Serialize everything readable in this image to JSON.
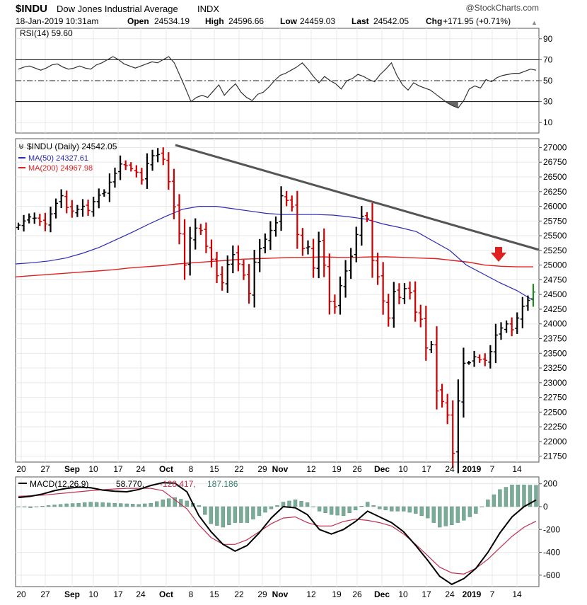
{
  "header": {
    "symbol": "$INDU",
    "name": "Dow Jones Industrial Average",
    "exchange": "INDX",
    "brand": "@StockCharts.com",
    "date": "18-Jan-2019 10:31am",
    "open_label": "Open",
    "open": "24534.19",
    "high_label": "High",
    "high": "24596.66",
    "low_label": "Low",
    "low": "24459.03",
    "last_label": "Last",
    "last": "24542.05",
    "chg_label": "Chg",
    "chg": "+171.95 (+0.71%)"
  },
  "colors": {
    "price_up": "#000000",
    "price_down": "#cc0000",
    "ma50": "#2a2ab8",
    "ma200": "#e02020",
    "macd_line": "#000000",
    "signal_line": "#c03050",
    "histogram": "#7aaa98",
    "trendline": "#555555",
    "arrow": "#e02020"
  },
  "chart_data": [
    {
      "type": "line",
      "panel": "RSI",
      "legend": "RSI(14) 59.60",
      "y_ticks": [
        90,
        70,
        50,
        30,
        10
      ],
      "ylim": [
        0,
        100
      ],
      "reference_lines": [
        70,
        50,
        30
      ],
      "x_ticks": [
        "20",
        "27",
        "Sep",
        "10",
        "17",
        "24",
        "Oct",
        "8",
        "15",
        "22",
        "29",
        "Nov",
        "12",
        "19",
        "26",
        "Dec",
        "10",
        "17",
        "24",
        "2019",
        "7",
        "14"
      ],
      "series": [
        {
          "name": "RSI(14)",
          "values": [
            61,
            63,
            64,
            62,
            60,
            62,
            65,
            66,
            63,
            61,
            62,
            64,
            62,
            61,
            65,
            67,
            70,
            73,
            70,
            66,
            64,
            62,
            64,
            66,
            68,
            67,
            70,
            73,
            67,
            55,
            43,
            30,
            34,
            36,
            34,
            40,
            46,
            36,
            42,
            47,
            39,
            34,
            31,
            37,
            39,
            44,
            50,
            55,
            57,
            60,
            63,
            67,
            61,
            54,
            48,
            54,
            50,
            47,
            42,
            50,
            52,
            56,
            54,
            51,
            49,
            56,
            61,
            67,
            55,
            46,
            41,
            48,
            45,
            43,
            41,
            37,
            33,
            29,
            26,
            24,
            31,
            42,
            45,
            43,
            51,
            49,
            53,
            55,
            56,
            57,
            57,
            59,
            61,
            60
          ]
        }
      ]
    },
    {
      "type": "bar",
      "panel": "Price",
      "legend": "$INDU (Daily) 24542.05",
      "y_ticks": [
        27000,
        26750,
        26500,
        26250,
        26000,
        25750,
        25500,
        25250,
        25000,
        24750,
        24500,
        24250,
        24000,
        23750,
        23500,
        23250,
        23000,
        22750,
        22500,
        22250,
        22000,
        21750
      ],
      "ylim": [
        21650,
        27150
      ],
      "x_ticks": [
        "20",
        "27",
        "Sep",
        "10",
        "17",
        "24",
        "Oct",
        "8",
        "15",
        "22",
        "29",
        "Nov",
        "12",
        "19",
        "26",
        "Dec",
        "10",
        "17",
        "24",
        "2019",
        "7",
        "14"
      ],
      "values": [
        25680,
        25750,
        25820,
        25800,
        25740,
        25700,
        25870,
        26050,
        26180,
        25980,
        25920,
        25950,
        26000,
        25930,
        26080,
        26190,
        26240,
        26410,
        26560,
        26720,
        26690,
        26640,
        26580,
        26450,
        26730,
        26860,
        26880,
        26800,
        26420,
        25990,
        25540,
        25000,
        25460,
        25630,
        25590,
        25320,
        25100,
        24820,
        24700,
        25010,
        25180,
        25020,
        24830,
        24520,
        25050,
        25280,
        25440,
        25590,
        25720,
        26180,
        26100,
        25990,
        25520,
        25280,
        25310,
        24950,
        25400,
        25000,
        24380,
        24290,
        24650,
        24900,
        25150,
        25520,
        25830,
        25790,
        25080,
        24800,
        24390,
        24100,
        24550,
        24450,
        24600,
        24530,
        24200,
        24080,
        23590,
        23650,
        22860,
        22680,
        22450,
        21800,
        22690,
        23330,
        23340,
        23440,
        23390,
        23380,
        23530,
        23810,
        23930,
        24000,
        23900,
        24100,
        24300,
        24400,
        24542
      ],
      "series": [
        {
          "name": "MA(50) 24327.61",
          "values": [
            25020,
            25040,
            25070,
            25120,
            25200,
            25300,
            25430,
            25560,
            25700,
            25830,
            25950,
            26000,
            26000,
            25960,
            25920,
            25880,
            25860,
            25860,
            25860,
            25850,
            25820,
            25780,
            25700,
            25640,
            25570,
            25410,
            25250,
            25000,
            24850,
            24700,
            24570,
            24400
          ]
        },
        {
          "name": "MA(200) 24967.98",
          "values": [
            24800,
            24820,
            24840,
            24860,
            24880,
            24900,
            24920,
            24950,
            24970,
            24990,
            25020,
            25040,
            25060,
            25080,
            25100,
            25110,
            25120,
            25130,
            25130,
            25140,
            25130,
            25130,
            25140,
            25140,
            25130,
            25120,
            25110,
            25080,
            25050,
            25000,
            24980,
            24970,
            24970
          ]
        }
      ],
      "annotations": [
        "Downtrend line",
        "Red arrow above MA(200)"
      ]
    },
    {
      "type": "line",
      "panel": "MACD",
      "legend_prefix": "MACD(12,26,9)",
      "legend_macd": "58.770,",
      "legend_signal": "-128.417,",
      "legend_hist": "187.186",
      "y_ticks": [
        200,
        0,
        -200,
        -400,
        -600
      ],
      "ylim": [
        -700,
        260
      ],
      "x_ticks": [
        "20",
        "27",
        "Sep",
        "10",
        "17",
        "24",
        "Oct",
        "8",
        "15",
        "22",
        "29",
        "Nov",
        "12",
        "19",
        "26",
        "Dec",
        "10",
        "17",
        "24",
        "2019",
        "7",
        "14"
      ],
      "series": [
        {
          "name": "MACD",
          "values": [
            80,
            90,
            110,
            140,
            160,
            170,
            165,
            145,
            135,
            130,
            150,
            185,
            210,
            205,
            130,
            -80,
            -220,
            -330,
            -390,
            -340,
            -230,
            -100,
            0,
            -10,
            -70,
            -200,
            -240,
            -200,
            -130,
            -40,
            -90,
            -140,
            -220,
            -340,
            -470,
            -610,
            -680,
            -630,
            -540,
            -400,
            -230,
            -90,
            0,
            58
          ]
        },
        {
          "name": "Signal",
          "values": [
            90,
            95,
            100,
            110,
            120,
            130,
            140,
            148,
            155,
            160,
            160,
            160,
            140,
            60,
            -20,
            -160,
            -270,
            -330,
            -330,
            -290,
            -220,
            -150,
            -100,
            -90,
            -140,
            -170,
            -170,
            -130,
            -110,
            -120,
            -140,
            -170,
            -240,
            -330,
            -430,
            -530,
            -580,
            -590,
            -540,
            -460,
            -360,
            -260,
            -180,
            -128
          ]
        },
        {
          "name": "Histogram",
          "values": [
            0,
            -10,
            5,
            15,
            25,
            30,
            40,
            35,
            30,
            25,
            20,
            30,
            60,
            80,
            50,
            10,
            -150,
            -180,
            -140,
            -140,
            -80,
            -20,
            40,
            60,
            35,
            -40,
            -70,
            -80,
            -30,
            40,
            -20,
            -40,
            -40,
            -60,
            -100,
            -180,
            -160,
            -120,
            -60,
            60,
            150,
            190,
            190,
            187
          ]
        }
      ]
    }
  ]
}
